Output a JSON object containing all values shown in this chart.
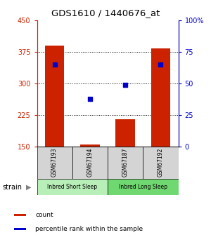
{
  "title": "GDS1610 / 1440676_at",
  "samples": [
    "GSM67193",
    "GSM67194",
    "GSM67187",
    "GSM67192"
  ],
  "counts": [
    390,
    155,
    215,
    383
  ],
  "percentiles": [
    65,
    38,
    49,
    65
  ],
  "ylim_left": [
    150,
    450
  ],
  "ylim_right": [
    0,
    100
  ],
  "yticks_left": [
    150,
    225,
    300,
    375,
    450
  ],
  "yticks_right": [
    0,
    25,
    50,
    75,
    100
  ],
  "right_tick_labels": [
    "0",
    "25",
    "50",
    "75",
    "100%"
  ],
  "groups": [
    {
      "label": "Inbred Short Sleep",
      "indices": [
        0,
        1
      ],
      "color": "#b8eeb8"
    },
    {
      "label": "Inbred Long Sleep",
      "indices": [
        2,
        3
      ],
      "color": "#70d870"
    }
  ],
  "bar_color": "#cc2200",
  "dot_color": "#0000cc",
  "bar_width": 0.55,
  "strain_label": "strain",
  "legend_items": [
    {
      "color": "#cc2200",
      "label": "count"
    },
    {
      "color": "#0000cc",
      "label": "percentile rank within the sample"
    }
  ],
  "left_axis_color": "#cc2200",
  "right_axis_color": "#0000cc",
  "grid_dotted_at": [
    225,
    300,
    375
  ],
  "sample_box_color": "#d4d4d4"
}
